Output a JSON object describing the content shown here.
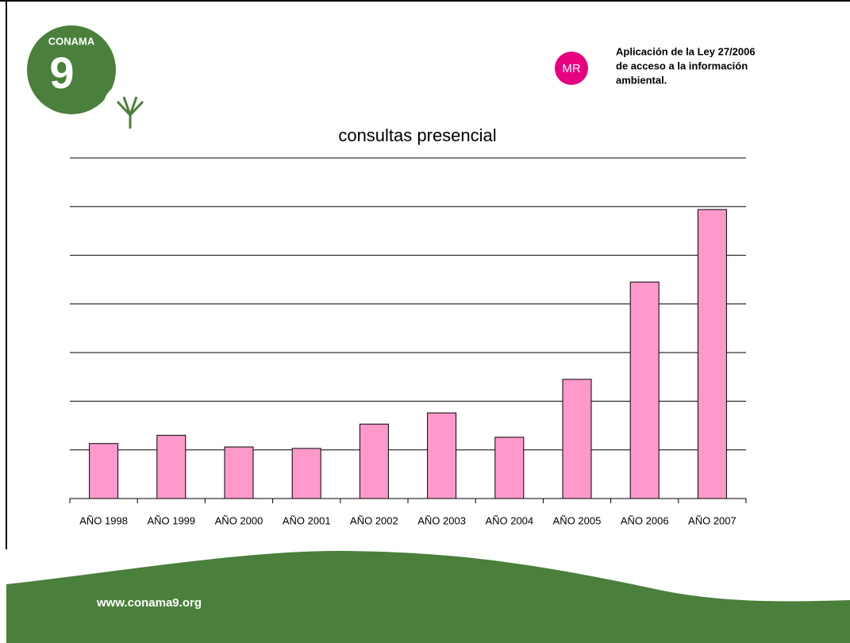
{
  "header": {
    "logo_text": "CONAMA",
    "logo_number": "9",
    "badge": "MR",
    "lines": [
      "Aplicación de la Ley 27/2006",
      "de acceso a la información",
      "ambiental."
    ]
  },
  "chart_data": {
    "type": "bar",
    "title": "consultas presencial",
    "categories": [
      "AÑO 1998",
      "AÑO 1999",
      "AÑO 2000",
      "AÑO 2001",
      "AÑO 2002",
      "AÑO 2003",
      "AÑO 2004",
      "AÑO 2005",
      "AÑO 2006",
      "AÑO 2007"
    ],
    "values": [
      1.13,
      1.3,
      1.06,
      1.03,
      1.53,
      1.76,
      1.26,
      2.45,
      4.45,
      5.94
    ],
    "color": "#ff99cc",
    "ylim": [
      0,
      7
    ],
    "yticks": [
      0,
      1,
      2,
      3,
      4,
      5,
      6,
      7
    ],
    "grid": true
  },
  "footer": {
    "url": "www.conama9.org"
  }
}
